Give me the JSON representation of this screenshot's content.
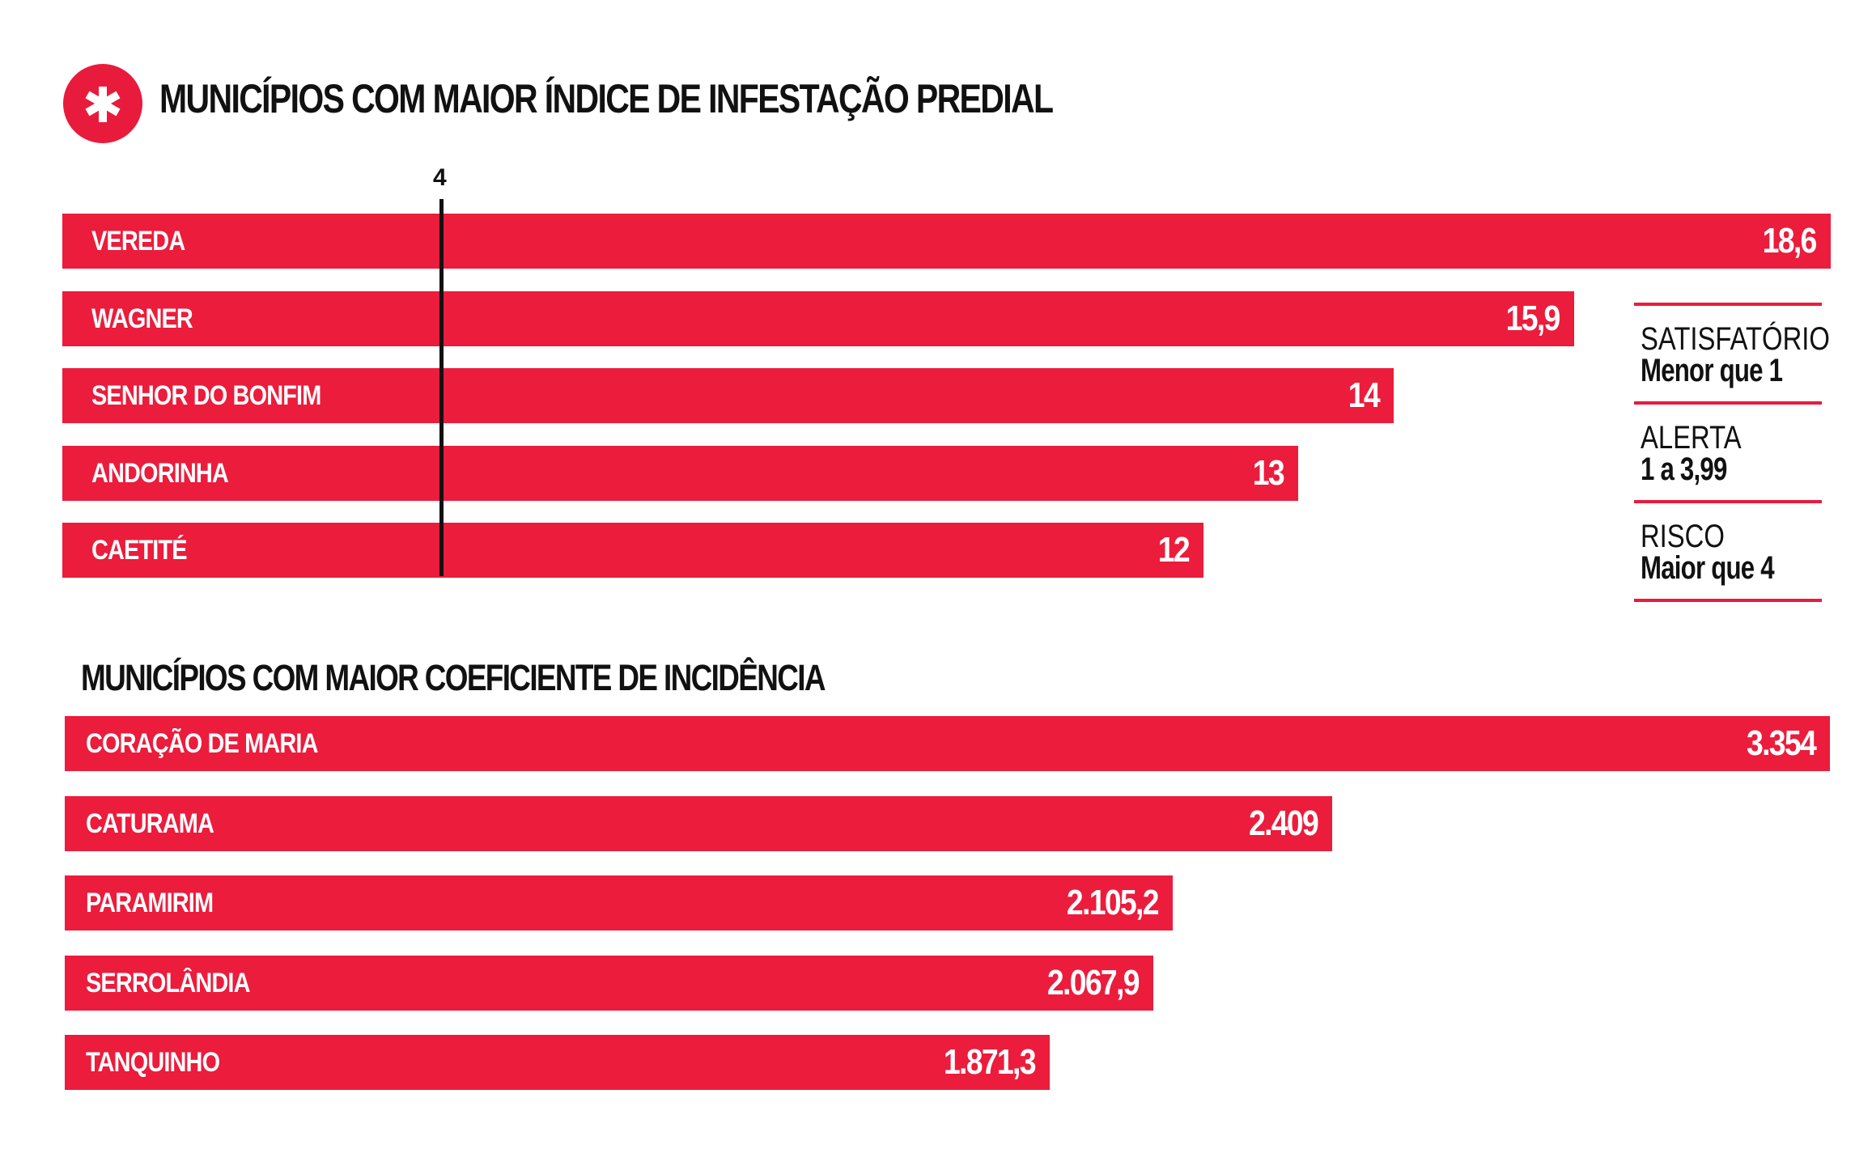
{
  "colors": {
    "accent": "#eb1c3c",
    "text": "#111111",
    "bar_text": "#ffffff"
  },
  "icon": "asterisk-icon",
  "chart_data": [
    {
      "type": "bar",
      "orientation": "horizontal",
      "title": "MUNICÍPIOS COM MAIOR ÍNDICE DE INFESTAÇÃO PREDIAL",
      "categories": [
        "VEREDA",
        "WAGNER",
        "SENHOR DO BONFIM",
        "ANDORINHA",
        "CAETITÉ"
      ],
      "values": [
        18.6,
        15.9,
        14,
        13,
        12
      ],
      "value_labels": [
        "18,6",
        "15,9",
        "14",
        "13",
        "12"
      ],
      "reference_line": {
        "value": 4,
        "label": "4"
      },
      "xlim": [
        0,
        18.6
      ],
      "legend": [
        {
          "category": "SATISFATÓRIO",
          "range": "Menor que 1"
        },
        {
          "category": "ALERTA",
          "range": "1 a 3,99"
        },
        {
          "category": "RISCO",
          "range": "Maior que 4"
        }
      ],
      "legend_position": "right"
    },
    {
      "type": "bar",
      "orientation": "horizontal",
      "title": "MUNICÍPIOS COM MAIOR COEFICIENTE DE INCIDÊNCIA",
      "categories": [
        "CORAÇÃO DE MARIA",
        "CATURAMA",
        "PARAMIRIM",
        "SERROLÂNDIA",
        "TANQUINHO"
      ],
      "values": [
        3354,
        2409,
        2105.2,
        2067.9,
        1871.3
      ],
      "value_labels": [
        "3.354",
        "2.409",
        "2.105,2",
        "2.067,9",
        "1.871,3"
      ],
      "xlim": [
        0,
        3354
      ]
    }
  ]
}
